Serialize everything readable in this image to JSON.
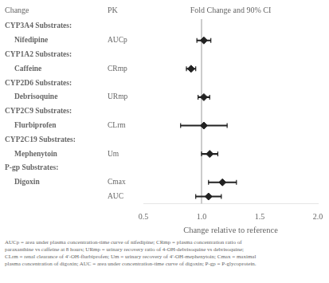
{
  "chart_data": {
    "type": "forest",
    "column_headers": [
      "Change",
      "PK",
      "Fold Change and 90% CI"
    ],
    "categories": [
      "CYP3A4 Substrates:",
      "Nifedipine",
      "CYP1A2 Substrates:",
      "Caffeine",
      "CYP2D6 Substrates:",
      "Debrisoquine",
      "CYP2C9 Substrates:",
      "Flurbiprofen",
      "CYP2C19 Substrates:",
      "Mephenytoin",
      "P-gp Substrates:",
      "Digoxin",
      null
    ],
    "is_header": [
      true,
      false,
      true,
      false,
      true,
      false,
      true,
      false,
      true,
      false,
      true,
      false,
      false
    ],
    "pk": [
      null,
      "AUCp",
      null,
      "CRmp",
      null,
      "URmp",
      null,
      "CLrm",
      null,
      "Um",
      null,
      "Cmax",
      "AUC"
    ],
    "values": [
      null,
      1.02,
      null,
      0.91,
      null,
      1.02,
      null,
      1.02,
      null,
      1.07,
      null,
      1.18,
      1.06
    ],
    "ci_low": [
      null,
      0.96,
      null,
      0.87,
      null,
      0.97,
      null,
      0.82,
      null,
      1.0,
      null,
      1.06,
      0.95
    ],
    "ci_high": [
      null,
      1.08,
      null,
      0.95,
      null,
      1.07,
      null,
      1.22,
      null,
      1.14,
      null,
      1.3,
      1.17
    ],
    "xlabel": "Change relative to reference",
    "xlim": [
      0.5,
      2.0
    ],
    "xticks": [
      0.5,
      {
        "value": 1.0,
        "label": "1.0"
      },
      1.5,
      {
        "value": 2.0,
        "label": "2.0"
      }
    ],
    "reference_line": 1.0,
    "footnote": "AUCp = area under plasma concentration-time curve of nifedipine; CRmp = plasma concentration ratio of\nparaxanthine vs caffeine at 8 hours; URmp = urinary recovery ratio of 4-OH-debrisoquine vs debrisoquine;\nCLrm = renal clearance of 4′-OH-flurbiprofen; Um = urinary recovery of 4′-OH-mephenytoin; Cmax = maximal\nplasma concentration of digoxin; AUC = area under concentration-time curve of digoxin; P-gp = P-glycoprotein.",
    "color": "#222222",
    "marker": "diamond",
    "grid": false
  }
}
